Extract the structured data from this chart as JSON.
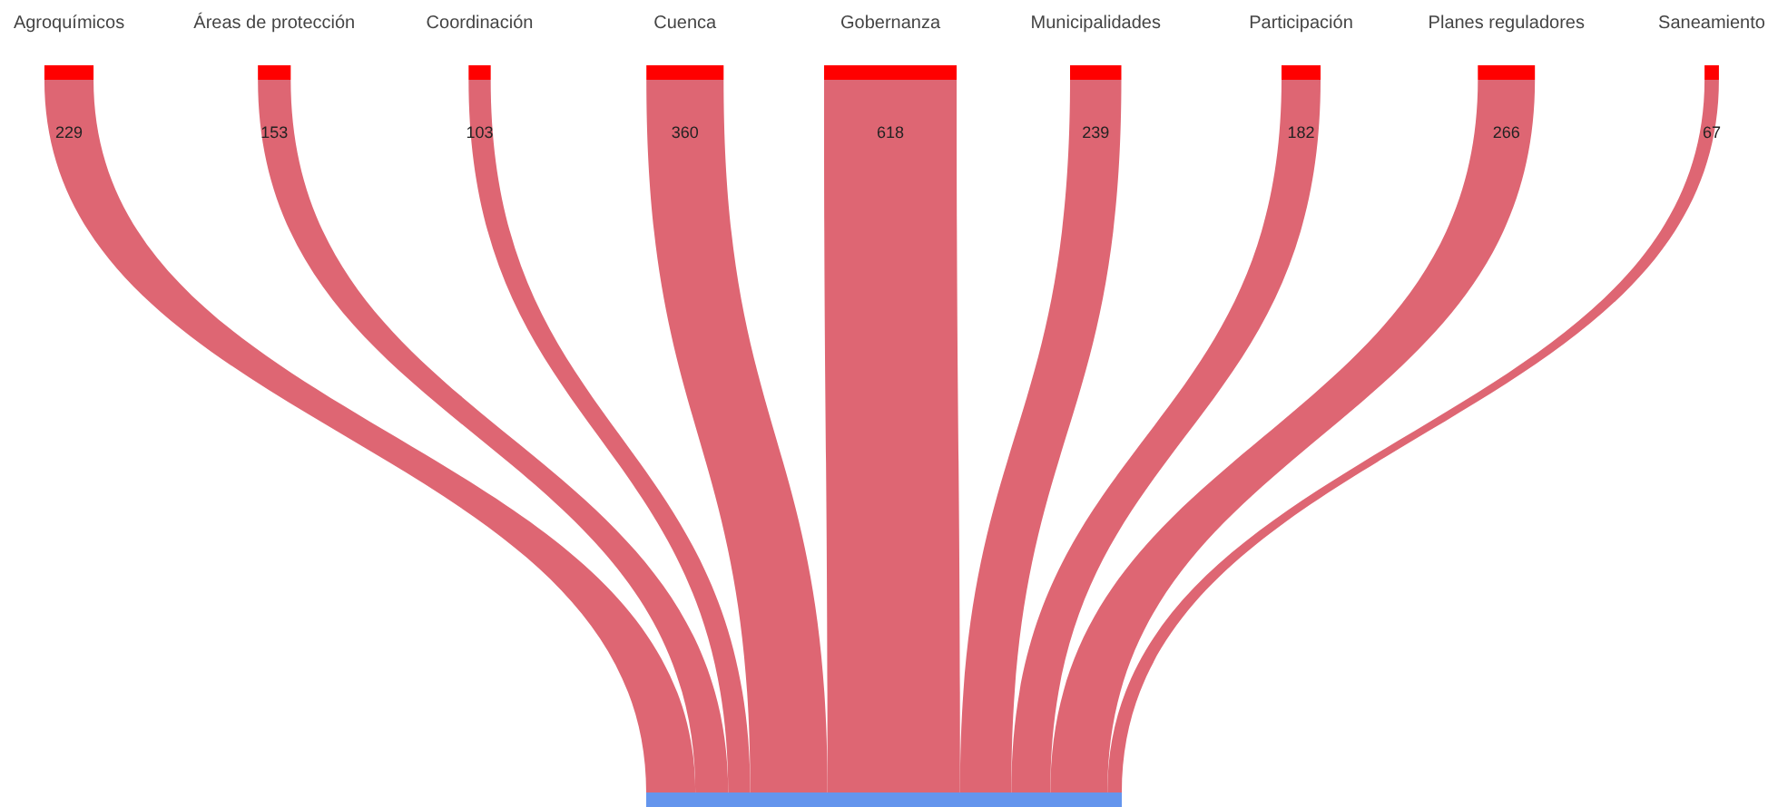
{
  "chart_data": {
    "type": "other",
    "categories": [
      "Agroquímicos",
      "Áreas de protección",
      "Coordinación",
      "Cuenca",
      "Gobernanza",
      "Municipalidades",
      "Participación",
      "Planes reguladores",
      "Saneamiento"
    ],
    "values": [
      229,
      153,
      103,
      360,
      618,
      239,
      182,
      266,
      67
    ],
    "colors": [
      "#de6673",
      "#de6673",
      "#de6673",
      "#de6673",
      "#de6673",
      "#de6673",
      "#de6673",
      "#de6673",
      "#de6673"
    ],
    "data_labels": true
  }
}
